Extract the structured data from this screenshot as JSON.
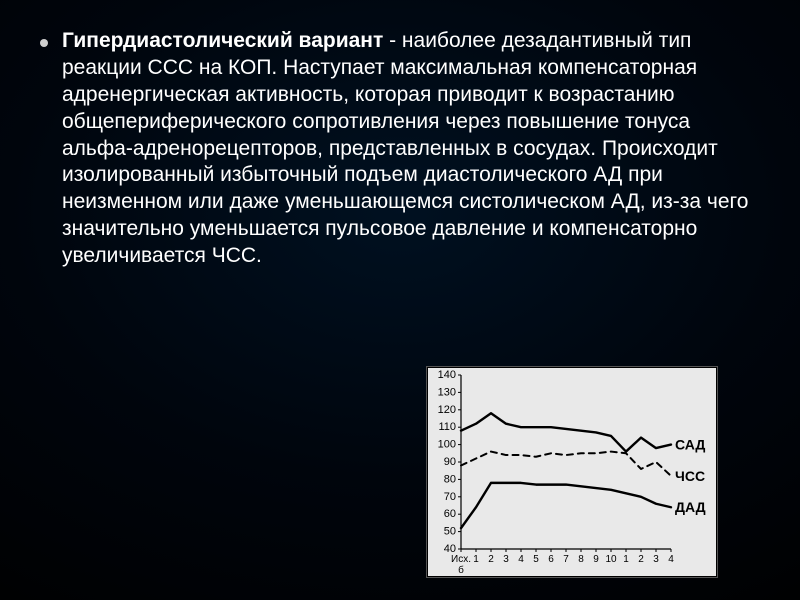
{
  "text": {
    "bold_lead": "Гипердиастолический вариант",
    "rest": " - наиболее дезадантивный тип реакции ССС на КОП. Наступает максимальная компенсаторная адренергическая активность, которая приводит к возрастанию общепериферического сопротивления через повышение тонуса альфа-адренорецепторов, представленных в сосудах. Происходит изолированный избыточный подъем диастолического АД при неизменном или даже уменьшающемся систолическом АД, из-за чего значительно уменьшается пульсовое давление и компенсаторно увеличивается ЧСС."
  },
  "chart": {
    "type": "line",
    "background_color": "#e9e9e9",
    "axis_color": "#000000",
    "grid_on": false,
    "ylim": [
      40,
      140
    ],
    "ytick_step": 10,
    "yticks": [
      40,
      50,
      60,
      70,
      80,
      90,
      100,
      110,
      120,
      130,
      140
    ],
    "x_categories": [
      "Исх.",
      "1",
      "2",
      "3",
      "4",
      "5",
      "6",
      "7",
      "8",
      "9",
      "10",
      "1",
      "2",
      "3",
      "4"
    ],
    "x_secondary_label": "б",
    "series": [
      {
        "name": "САД",
        "label": "САД",
        "dash": "solid",
        "line_width": 2.4,
        "color": "#000000",
        "values": [
          108,
          112,
          118,
          112,
          110,
          110,
          110,
          109,
          108,
          107,
          105,
          96,
          104,
          98,
          100
        ]
      },
      {
        "name": "ЧСС",
        "label": "ЧСС",
        "dash": "dashed",
        "line_width": 2.0,
        "color": "#000000",
        "values": [
          88,
          92,
          96,
          94,
          94,
          93,
          95,
          94,
          95,
          95,
          96,
          95,
          86,
          90,
          82
        ]
      },
      {
        "name": "ДАД",
        "label": "ДАД",
        "dash": "solid",
        "line_width": 2.4,
        "color": "#000000",
        "values": [
          52,
          64,
          78,
          78,
          78,
          77,
          77,
          77,
          76,
          75,
          74,
          72,
          70,
          66,
          64
        ]
      }
    ],
    "label_fontsize": 14,
    "tick_fontsize": 11
  }
}
